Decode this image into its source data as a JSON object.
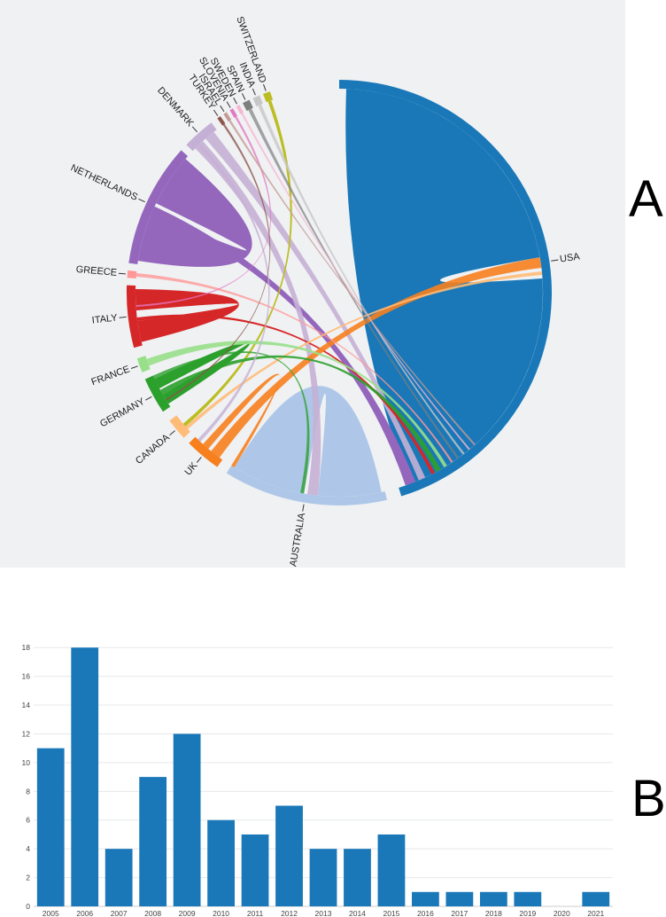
{
  "panel_a": {
    "letter": "A",
    "chart_data": {
      "type": "chord",
      "title": "",
      "countries": [
        {
          "name": "USA",
          "color": "#1a78b8"
        },
        {
          "name": "AUSTRALIA",
          "color": "#aec7e8"
        },
        {
          "name": "UK",
          "color": "#f77f1e"
        },
        {
          "name": "CANADA",
          "color": "#ffbb78"
        },
        {
          "name": "GERMANY",
          "color": "#2ca02c"
        },
        {
          "name": "FRANCE",
          "color": "#98df8a"
        },
        {
          "name": "ITALY",
          "color": "#d62728"
        },
        {
          "name": "GREECE",
          "color": "#ff9896"
        },
        {
          "name": "NETHERLANDS",
          "color": "#9467bd"
        },
        {
          "name": "DENMARK",
          "color": "#c5b0d5"
        },
        {
          "name": "TURKEY",
          "color": "#8c564b"
        },
        {
          "name": "ISRAEL",
          "color": "#c49c94"
        },
        {
          "name": "SLOVENIA",
          "color": "#e377c2"
        },
        {
          "name": "SWEDEN",
          "color": "#f7b6d2"
        },
        {
          "name": "SPAIN",
          "color": "#7f7f7f"
        },
        {
          "name": "INDIA",
          "color": "#c7c7c7"
        },
        {
          "name": "SWITZERLAND",
          "color": "#bcbd22"
        }
      ]
    }
  },
  "panel_b": {
    "letter": "B",
    "chart_data": {
      "type": "bar",
      "title": "",
      "xlabel": "",
      "ylabel": "",
      "categories": [
        "2005",
        "2006",
        "2007",
        "2008",
        "2009",
        "2010",
        "2011",
        "2012",
        "2013",
        "2014",
        "2015",
        "2016",
        "2017",
        "2018",
        "2019",
        "2020",
        "2021"
      ],
      "values": [
        11,
        18,
        4,
        9,
        12,
        6,
        5,
        7,
        4,
        4,
        5,
        1,
        1,
        1,
        1,
        0,
        1
      ],
      "ylim": [
        0,
        19
      ],
      "yticks": [
        0,
        2,
        4,
        6,
        8,
        10,
        12,
        14,
        16,
        18
      ],
      "grid": true,
      "bar_color": "#1a78b8"
    }
  }
}
